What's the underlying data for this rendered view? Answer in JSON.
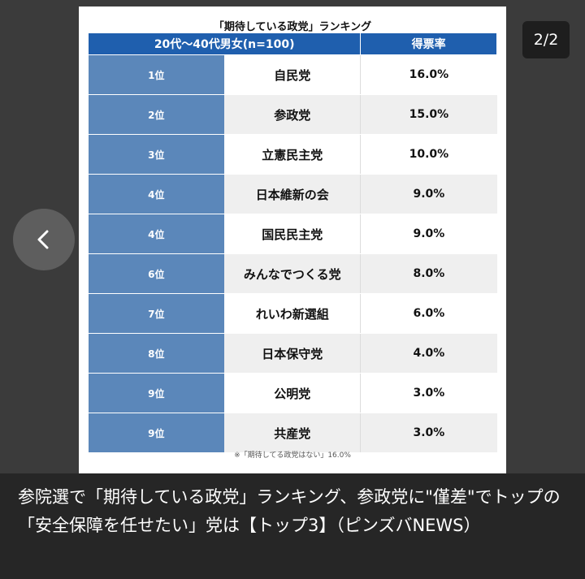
{
  "viewer": {
    "page_counter": "2/2",
    "prev_icon": "chevron-left-icon",
    "caption": "参院選で「期待している政党」ランキング、参政党に\"僅差\"でトップの「安全保障を任せたい」党は【トップ3】（ピンズバNEWS）"
  },
  "chart": {
    "title": "「期待している政党」ランキング",
    "header_left": "20代〜40代男女(n=100)",
    "header_right": "得票率",
    "note": "※「期待してる政党はない」16.0%"
  },
  "colors": {
    "header_blue": "#1f5fae",
    "rank_blue": "#5b87ba",
    "row_gray": "#efefef"
  },
  "chart_data": {
    "type": "table",
    "title": "「期待している政党」ランキング",
    "columns": [
      "20代〜40代男女(n=100)",
      "得票率"
    ],
    "rows": [
      {
        "rank": "1位",
        "party": "自民党",
        "rate": "16.0%",
        "value": 16.0
      },
      {
        "rank": "2位",
        "party": "参政党",
        "rate": "15.0%",
        "value": 15.0
      },
      {
        "rank": "3位",
        "party": "立憲民主党",
        "rate": "10.0%",
        "value": 10.0
      },
      {
        "rank": "4位",
        "party": "日本維新の会",
        "rate": "9.0%",
        "value": 9.0
      },
      {
        "rank": "4位",
        "party": "国民民主党",
        "rate": "9.0%",
        "value": 9.0
      },
      {
        "rank": "6位",
        "party": "みんなでつくる党",
        "rate": "8.0%",
        "value": 8.0
      },
      {
        "rank": "7位",
        "party": "れいわ新選組",
        "rate": "6.0%",
        "value": 6.0
      },
      {
        "rank": "8位",
        "party": "日本保守党",
        "rate": "4.0%",
        "value": 4.0
      },
      {
        "rank": "9位",
        "party": "公明党",
        "rate": "3.0%",
        "value": 3.0
      },
      {
        "rank": "9位",
        "party": "共産党",
        "rate": "3.0%",
        "value": 3.0
      }
    ]
  }
}
